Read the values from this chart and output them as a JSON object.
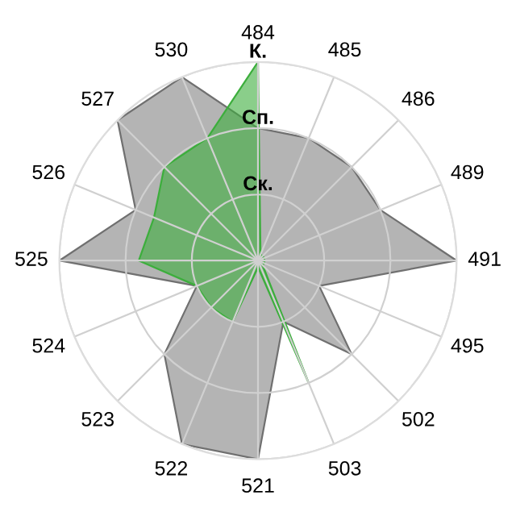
{
  "chart_data": {
    "type": "radar",
    "categories": [
      "484",
      "485",
      "486",
      "489",
      "491",
      "495",
      "502",
      "503",
      "521",
      "522",
      "523",
      "524",
      "525",
      "526",
      "527",
      "530"
    ],
    "ylim": [
      0,
      3
    ],
    "yticks": [
      {
        "value": 1,
        "label": "Ск."
      },
      {
        "value": 2,
        "label": "Сп."
      },
      {
        "value": 3,
        "label": "К."
      }
    ],
    "grid": true,
    "series": [
      {
        "color": "#b4b4b4",
        "values": [
          2.0,
          2.0,
          2.0,
          2.0,
          3.0,
          1.0,
          2.0,
          1.0,
          3.0,
          3.0,
          2.0,
          1.0,
          3.0,
          2.0,
          3.0,
          3.0
        ]
      },
      {
        "color": "#3cae3c",
        "values": [
          3.0,
          0.1,
          0.1,
          0.1,
          0.1,
          0.1,
          0.1,
          2.0,
          0.1,
          1.0,
          1.0,
          1.0,
          1.8,
          1.7,
          2.0,
          2.0
        ]
      }
    ]
  }
}
